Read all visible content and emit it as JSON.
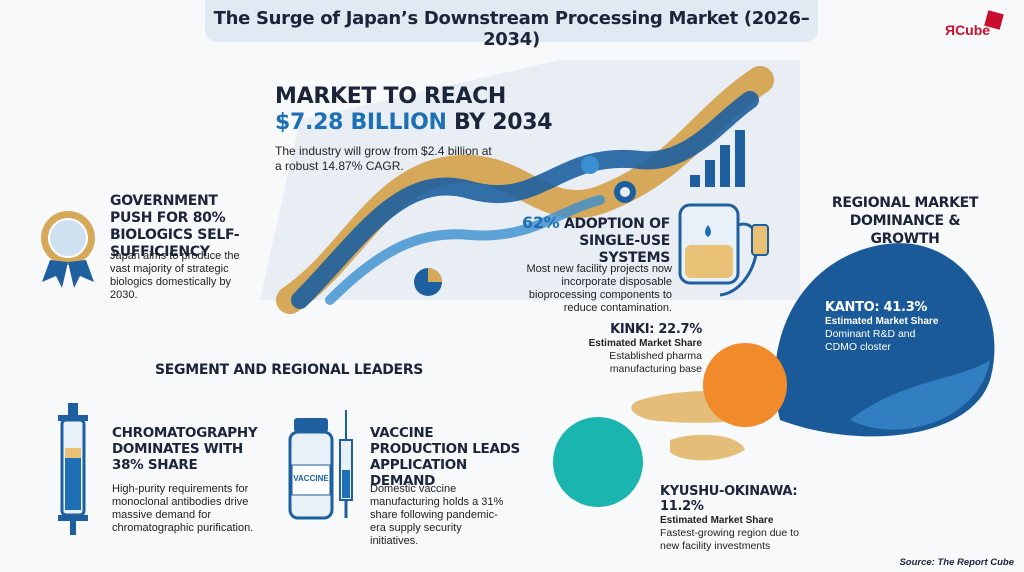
{
  "header": {
    "title": "The Surge of Japan’s Downstream Processing Market (2026–2034)",
    "logo": "ЯCube"
  },
  "market": {
    "line1": "MARKET TO REACH",
    "highlight": "$7.28 BILLION",
    "line2_rest": " BY 2034",
    "body": "The industry will grow from $2.4 billion at a robust 14.87% CAGR."
  },
  "government": {
    "title": "GOVERNMENT PUSH FOR 80% BIOLOGICS SELF-SUFFICIENCY",
    "body": "Japan aims to produce the vast majority of strategic biologics domestically by 2030."
  },
  "adoption": {
    "highlight": "62%",
    "title_rest": " ADOPTION OF SINGLE-USE SYSTEMS",
    "body": "Most new facility projects now incorporate disposable bioprocessing components to reduce contamination."
  },
  "regional": {
    "heading": "REGIONAL MARKET DOMINANCE & GROWTH",
    "regions": [
      {
        "title": "KANTO: 41.3%",
        "subtitle": "Estimated Market Share",
        "body": "Dominant R&D and CDMO closter"
      },
      {
        "title": "KINKI: 22.7%",
        "subtitle": "Estimated Market Share",
        "body": "Established pharma manufacturing base"
      },
      {
        "title": "KYUSHU-OKINAWA: 11.2%",
        "subtitle": "Estimated Market Share",
        "body": "Fastest-growing region due to new facility investments"
      }
    ]
  },
  "segments": {
    "heading": "SEGMENT AND REGIONAL LEADERS",
    "items": [
      {
        "title": "CHROMATOGRAPHY DOMINATES WITH 38% SHARE",
        "body": "High-purity requirements for monoclonal antibodies drive massive demand for chromatographic purification."
      },
      {
        "title": "VACCINE PRODUCTION LEADS APPLICATION DEMAND",
        "body": "Domestic vaccine manufacturing holds a 31% share following pandemic-era supply security initiatives.",
        "icon_label": "VACCINE"
      }
    ]
  },
  "footer": {
    "source": "Source: The Report Cube"
  }
}
